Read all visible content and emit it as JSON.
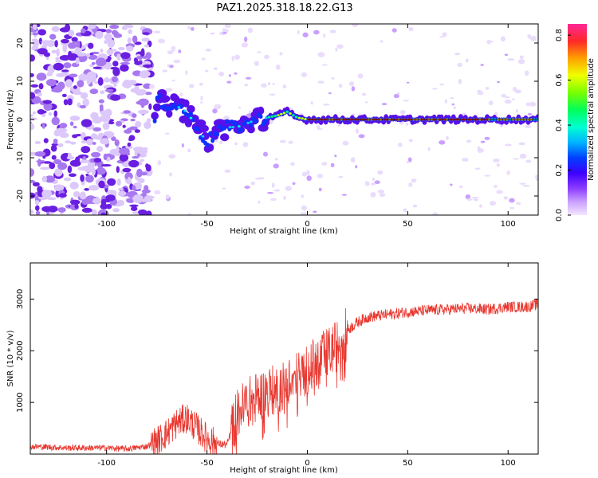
{
  "title": "PAZ1.2025.318.18.22.G13",
  "chart_data": [
    {
      "type": "heatmap",
      "name": "spectrogram",
      "xlabel": "Height of straight line (km)",
      "ylabel": "Frequency (Hz)",
      "xlim": [
        -138,
        115
      ],
      "ylim": [
        -25,
        25
      ],
      "xticks": [
        -100,
        -50,
        0,
        50,
        100
      ],
      "yticks": [
        -20,
        -10,
        0,
        10,
        20
      ],
      "xtick_labels": [
        "-100",
        "-50",
        "0",
        "50",
        "100"
      ],
      "ytick_labels": [
        "-20",
        "-10",
        "0",
        "10",
        "20"
      ],
      "colorbar": {
        "label": "Normalized spectral amplitude",
        "range": [
          0,
          0.85
        ],
        "ticks": [
          0.0,
          0.2,
          0.4,
          0.6,
          0.8
        ],
        "tick_labels": [
          "0.0",
          "0.2",
          "0.4",
          "0.6",
          "0.8"
        ]
      },
      "ridge": {
        "description_points": [
          {
            "x": -75,
            "y": 5
          },
          {
            "x": -70,
            "y": 4
          },
          {
            "x": -65,
            "y": 3.5
          },
          {
            "x": -60,
            "y": 2
          },
          {
            "x": -55,
            "y": -2
          },
          {
            "x": -50,
            "y": -6
          },
          {
            "x": -45,
            "y": -3
          },
          {
            "x": -40,
            "y": -2
          },
          {
            "x": -35,
            "y": -2
          },
          {
            "x": -30,
            "y": -1
          },
          {
            "x": -25,
            "y": 0
          },
          {
            "x": -20,
            "y": 0.5
          },
          {
            "x": -15,
            "y": 1
          },
          {
            "x": -10,
            "y": 2
          },
          {
            "x": -5,
            "y": 0.5
          },
          {
            "x": 0,
            "y": 0
          },
          {
            "x": 50,
            "y": 0
          },
          {
            "x": 115,
            "y": 0
          }
        ],
        "reference_line_y": 0
      }
    },
    {
      "type": "line",
      "name": "snr",
      "xlabel": "Height of straight line (km)",
      "ylabel": "SNR (10 * v/v)",
      "xlim": [
        -138,
        115
      ],
      "ylim": [
        0,
        3700
      ],
      "xticks": [
        -100,
        -50,
        0,
        50,
        100
      ],
      "yticks": [
        1000,
        2000,
        3000
      ],
      "xtick_labels": [
        "-100",
        "-50",
        "0",
        "50",
        "100"
      ],
      "ytick_labels": [
        "1000",
        "2000",
        "3000"
      ],
      "color": "#e8372f",
      "envelope": {
        "x": [
          -138,
          -120,
          -100,
          -90,
          -80,
          -75,
          -70,
          -65,
          -60,
          -55,
          -50,
          -45,
          -40,
          -35,
          -30,
          -25,
          -20,
          -15,
          -10,
          -5,
          0,
          5,
          10,
          15,
          20,
          25,
          30,
          40,
          50,
          60,
          70,
          80,
          90,
          100,
          110,
          115
        ],
        "y": [
          150,
          120,
          120,
          100,
          150,
          250,
          400,
          600,
          700,
          500,
          300,
          200,
          180,
          800,
          1000,
          1100,
          1200,
          1250,
          1400,
          1500,
          1650,
          1800,
          1950,
          2100,
          2400,
          2550,
          2650,
          2700,
          2750,
          2780,
          2800,
          2820,
          2800,
          2850,
          2850,
          2900
        ]
      }
    }
  ]
}
